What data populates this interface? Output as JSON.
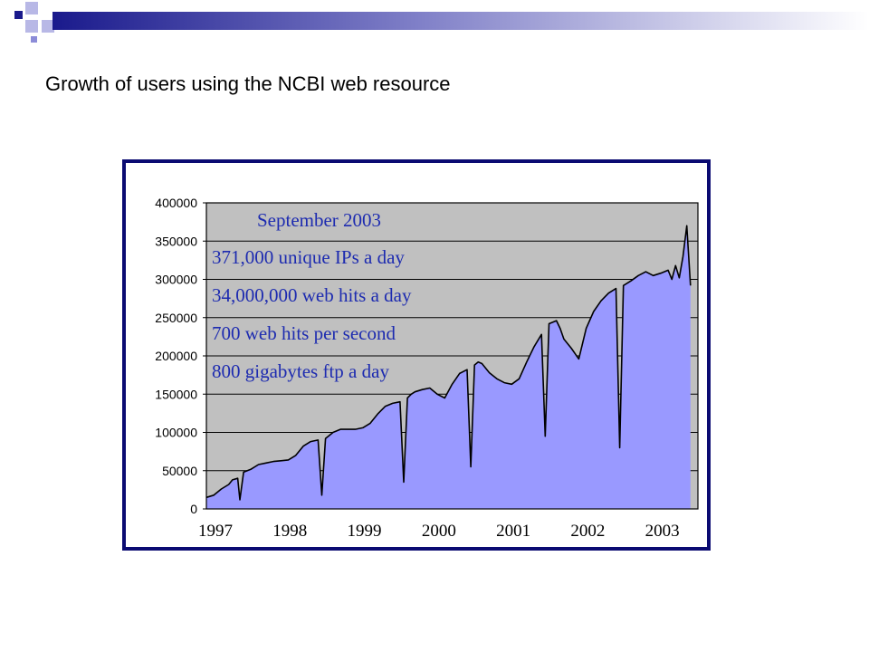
{
  "slide": {
    "title": "Growth of users using the NCBI web resource",
    "accent_dark": "#1a1a8c",
    "accent_light": "#8c8cd8"
  },
  "chart_data": {
    "type": "area",
    "title": "",
    "xlabel": "",
    "ylabel": "",
    "xlim": [
      1997.0,
      2003.6
    ],
    "ylim": [
      0,
      400000
    ],
    "y_ticks": [
      0,
      50000,
      100000,
      150000,
      200000,
      250000,
      300000,
      350000,
      400000
    ],
    "x_ticks": [
      1997,
      1998,
      1999,
      2000,
      2001,
      2002,
      2003
    ],
    "grid": true,
    "fill_color": "#9999ff",
    "line_color": "#000000",
    "background_color": "#c0c0c0",
    "annotations": [
      "September 2003",
      "371,000 unique IPs a day",
      "34,000,000 web hits a day",
      "700 web hits per second",
      "800 gigabytes ftp a day"
    ],
    "series": [
      {
        "x": [
          1997.0,
          1997.1,
          1997.2,
          1997.3,
          1997.35,
          1997.42,
          1997.45,
          1997.5,
          1997.6,
          1997.7,
          1997.8,
          1997.9,
          1998.0,
          1998.1,
          1998.2,
          1998.3,
          1998.4,
          1998.5,
          1998.55,
          1998.6,
          1998.65,
          1998.7,
          1998.8,
          1998.9,
          1999.0,
          1999.1,
          1999.2,
          1999.3,
          1999.4,
          1999.5,
          1999.6,
          1999.65,
          1999.7,
          1999.75,
          1999.8,
          1999.9,
          2000.0,
          2000.1,
          2000.2,
          2000.3,
          2000.4,
          2000.5,
          2000.55,
          2000.6,
          2000.65,
          2000.7,
          2000.8,
          2000.9,
          2001.0,
          2001.1,
          2001.2,
          2001.3,
          2001.4,
          2001.5,
          2001.55,
          2001.6,
          2001.7,
          2001.75,
          2001.8,
          2001.9,
          2002.0,
          2002.1,
          2002.2,
          2002.3,
          2002.4,
          2002.5,
          2002.55,
          2002.6,
          2002.7,
          2002.8,
          2002.9,
          2003.0,
          2003.1,
          2003.2,
          2003.25,
          2003.3,
          2003.35,
          2003.4,
          2003.45,
          2003.5
        ],
        "values": [
          15000,
          18000,
          26000,
          32000,
          38000,
          40000,
          12000,
          48000,
          52000,
          58000,
          60000,
          62000,
          63000,
          64000,
          70000,
          82000,
          88000,
          90000,
          18000,
          92000,
          96000,
          100000,
          104000,
          104000,
          104000,
          106000,
          112000,
          124000,
          134000,
          138000,
          140000,
          35000,
          145000,
          150000,
          153000,
          156000,
          158000,
          150000,
          145000,
          163000,
          177000,
          182000,
          55000,
          188000,
          192000,
          190000,
          178000,
          170000,
          165000,
          163000,
          170000,
          192000,
          212000,
          228000,
          95000,
          242000,
          246000,
          236000,
          222000,
          210000,
          196000,
          236000,
          258000,
          272000,
          282000,
          288000,
          80000,
          292000,
          298000,
          305000,
          310000,
          305000,
          308000,
          312000,
          300000,
          318000,
          302000,
          330000,
          370000,
          292000
        ]
      }
    ]
  }
}
